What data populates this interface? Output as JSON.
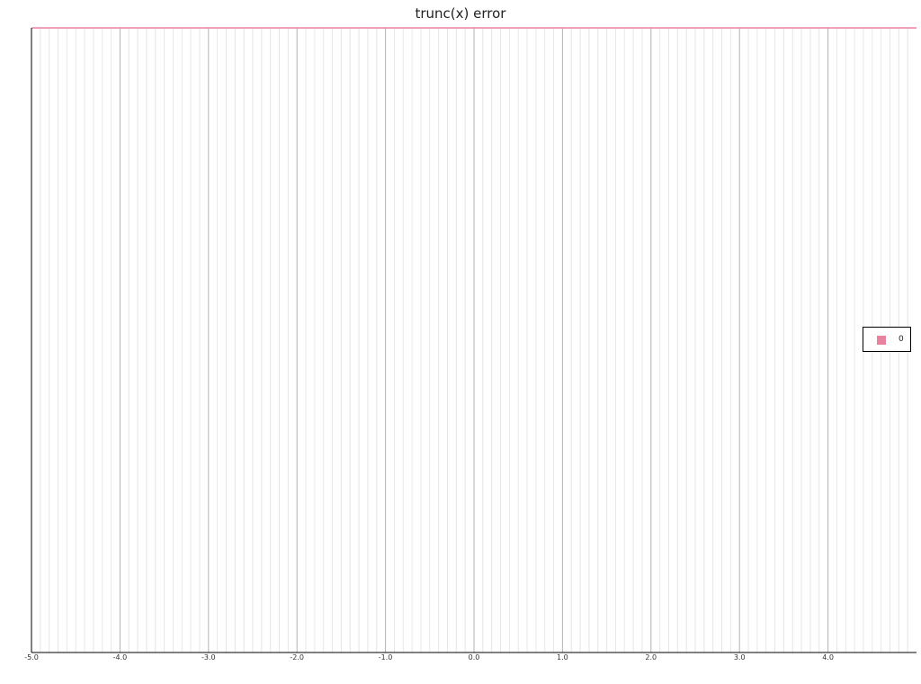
{
  "chart_data": {
    "type": "line",
    "title": "trunc(x) error",
    "xlabel": "",
    "ylabel": "",
    "xlim": [
      -5.0,
      5.0
    ],
    "x_ticks": [
      "-5.0",
      "-4.0",
      "-3.0",
      "-2.0",
      "-1.0",
      "0.0",
      "1.0",
      "2.0",
      "3.0",
      "4.0"
    ],
    "x_tick_values": [
      -5,
      -4,
      -3,
      -2,
      -1,
      0,
      1,
      2,
      3,
      4
    ],
    "x_minor_step": 0.1,
    "ylim": [
      -1,
      0
    ],
    "grid": true,
    "legend_position": "right",
    "series": [
      {
        "name": "0",
        "color": "#e8829f",
        "x": [
          -5.0,
          5.0
        ],
        "y": [
          0,
          0
        ]
      }
    ]
  }
}
